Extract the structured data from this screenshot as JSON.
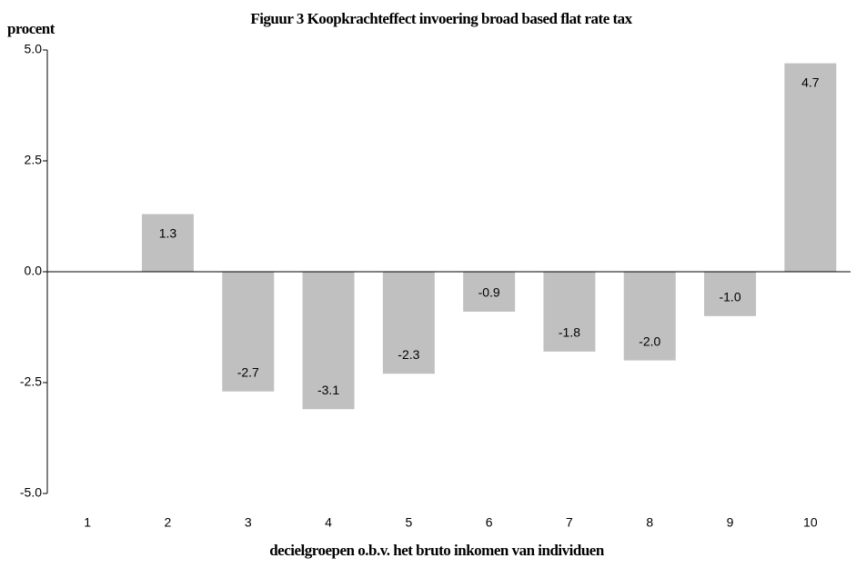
{
  "chart_data": {
    "type": "bar",
    "title": "Figuur 3  Koopkrachteffect invoering broad based flat rate tax",
    "y_axis_label": "procent",
    "x_axis_label": "decielgroepen o.b.v. het bruto inkomen van individuen",
    "categories": [
      "1",
      "2",
      "3",
      "4",
      "5",
      "6",
      "7",
      "8",
      "9",
      "10"
    ],
    "values": [
      null,
      1.3,
      -2.7,
      -3.1,
      -2.3,
      -0.9,
      -1.8,
      -2.0,
      -1.0,
      4.7
    ],
    "value_labels": [
      null,
      "1.3",
      "-2.7",
      "-3.1",
      "-2.3",
      "-0.9",
      "-1.8",
      "-2.0",
      "-1.0",
      "4.7"
    ],
    "color": "#c0c0c0",
    "ylim": [
      -5,
      5
    ],
    "yticks": [
      {
        "value": 5,
        "label": "5.0"
      },
      2.5,
      {
        "value": 0,
        "label": "0.0"
      },
      -2.5,
      {
        "value": -5,
        "label": "-5.0"
      }
    ],
    "grid": false
  }
}
